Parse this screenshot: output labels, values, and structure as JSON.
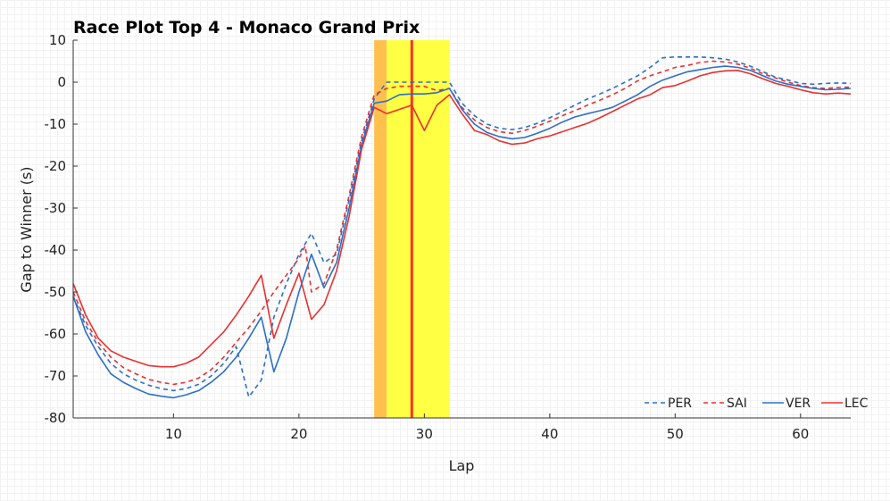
{
  "chart_data": {
    "type": "line",
    "title": "Race Plot Top 4 - Monaco Grand Prix",
    "xlabel": "Lap",
    "ylabel": "Gap to Winner (s)",
    "xlim": [
      2,
      64
    ],
    "ylim": [
      -80,
      10
    ],
    "xticks": [
      10,
      20,
      30,
      40,
      50,
      60
    ],
    "yticks": [
      10,
      0,
      -10,
      -20,
      -30,
      -40,
      -50,
      -60,
      -70,
      -80
    ],
    "grid": false,
    "legend_position": "bottom-right",
    "shaded_regions": [
      {
        "x_start": 26,
        "x_end": 27,
        "color": "#ffc04d"
      },
      {
        "x_start": 27,
        "x_end": 32,
        "color": "#ffff44"
      }
    ],
    "vertical_lines": [
      {
        "x": 29,
        "color": "#ff3322"
      }
    ],
    "series": [
      {
        "name": "PER",
        "color": "#2b6fc7",
        "dash": "dashed",
        "points": [
          [
            2,
            -51
          ],
          [
            3,
            -58
          ],
          [
            4,
            -63
          ],
          [
            5,
            -67
          ],
          [
            6,
            -69.5
          ],
          [
            7,
            -71
          ],
          [
            8,
            -72.2
          ],
          [
            9,
            -73
          ],
          [
            10,
            -73.5
          ],
          [
            11,
            -73
          ],
          [
            12,
            -72
          ],
          [
            13,
            -70
          ],
          [
            14,
            -67
          ],
          [
            15,
            -63
          ],
          [
            16,
            -75
          ],
          [
            17,
            -71
          ],
          [
            18,
            -56
          ],
          [
            19,
            -48
          ],
          [
            20,
            -41
          ],
          [
            21,
            -36
          ],
          [
            22,
            -43
          ],
          [
            23,
            -41
          ],
          [
            24,
            -28
          ],
          [
            25,
            -14
          ],
          [
            26,
            -4
          ],
          [
            27,
            0
          ],
          [
            28,
            0
          ],
          [
            29,
            0
          ],
          [
            30,
            0
          ],
          [
            31,
            0
          ],
          [
            32,
            0
          ],
          [
            33,
            -5
          ],
          [
            34,
            -8
          ],
          [
            35,
            -10
          ],
          [
            36,
            -11
          ],
          [
            37,
            -11.3
          ],
          [
            38,
            -10.8
          ],
          [
            39,
            -9.8
          ],
          [
            40,
            -8.5
          ],
          [
            41,
            -7
          ],
          [
            42,
            -5.5
          ],
          [
            43,
            -4
          ],
          [
            44,
            -2.8
          ],
          [
            45,
            -1.5
          ],
          [
            46,
            0
          ],
          [
            47,
            1.5
          ],
          [
            48,
            3.5
          ],
          [
            49,
            5.8
          ],
          [
            50,
            6
          ],
          [
            51,
            6
          ],
          [
            52,
            6
          ],
          [
            53,
            5.8
          ],
          [
            54,
            5.5
          ],
          [
            55,
            4.8
          ],
          [
            56,
            3.8
          ],
          [
            57,
            2.5
          ],
          [
            58,
            1.2
          ],
          [
            59,
            0.5
          ],
          [
            60,
            -0.3
          ],
          [
            61,
            -0.5
          ],
          [
            62,
            -0.3
          ],
          [
            63,
            -0.2
          ],
          [
            64,
            -0.3
          ]
        ]
      },
      {
        "name": "SAI",
        "color": "#e83030",
        "dash": "dashed",
        "points": [
          [
            2,
            -50
          ],
          [
            3,
            -57
          ],
          [
            4,
            -62
          ],
          [
            5,
            -65.5
          ],
          [
            6,
            -68
          ],
          [
            7,
            -69.5
          ],
          [
            8,
            -70.8
          ],
          [
            9,
            -71.5
          ],
          [
            10,
            -72
          ],
          [
            11,
            -71.5
          ],
          [
            12,
            -70.5
          ],
          [
            13,
            -68.5
          ],
          [
            14,
            -65.5
          ],
          [
            15,
            -62
          ],
          [
            16,
            -58.5
          ],
          [
            17,
            -54.5
          ],
          [
            18,
            -50
          ],
          [
            19,
            -46
          ],
          [
            20,
            -42
          ],
          [
            20.5,
            -39
          ],
          [
            21,
            -50
          ],
          [
            22,
            -48
          ],
          [
            23,
            -40
          ],
          [
            24,
            -27
          ],
          [
            25,
            -13
          ],
          [
            26,
            -3
          ],
          [
            27,
            -1.5
          ],
          [
            28,
            -1
          ],
          [
            29,
            -1
          ],
          [
            30,
            -1
          ],
          [
            31,
            -2
          ],
          [
            32,
            -1.5
          ],
          [
            33,
            -6
          ],
          [
            34,
            -9
          ],
          [
            35,
            -10.8
          ],
          [
            36,
            -11.8
          ],
          [
            37,
            -12.2
          ],
          [
            38,
            -11.5
          ],
          [
            39,
            -10.5
          ],
          [
            40,
            -9.3
          ],
          [
            41,
            -8
          ],
          [
            42,
            -6.8
          ],
          [
            43,
            -5.5
          ],
          [
            44,
            -4.3
          ],
          [
            45,
            -3
          ],
          [
            46,
            -1.5
          ],
          [
            47,
            0.3
          ],
          [
            48,
            1.5
          ],
          [
            49,
            2.5
          ],
          [
            50,
            3.5
          ],
          [
            51,
            4
          ],
          [
            52,
            4.7
          ],
          [
            53,
            5
          ],
          [
            54,
            4.8
          ],
          [
            55,
            4.3
          ],
          [
            56,
            3.3
          ],
          [
            57,
            2
          ],
          [
            58,
            1
          ],
          [
            59,
            0
          ],
          [
            60,
            -0.8
          ],
          [
            61,
            -1.3
          ],
          [
            62,
            -1.5
          ],
          [
            63,
            -1.3
          ],
          [
            64,
            -1.2
          ]
        ]
      },
      {
        "name": "VER",
        "color": "#2b6fc7",
        "dash": "solid",
        "points": [
          [
            2,
            -51
          ],
          [
            3,
            -59.5
          ],
          [
            4,
            -65
          ],
          [
            5,
            -69.5
          ],
          [
            6,
            -71.5
          ],
          [
            7,
            -73
          ],
          [
            8,
            -74.3
          ],
          [
            9,
            -74.8
          ],
          [
            10,
            -75.2
          ],
          [
            11,
            -74.5
          ],
          [
            12,
            -73.5
          ],
          [
            13,
            -71.5
          ],
          [
            14,
            -69
          ],
          [
            15,
            -65.5
          ],
          [
            16,
            -61
          ],
          [
            17,
            -56
          ],
          [
            18,
            -69
          ],
          [
            19,
            -61
          ],
          [
            20,
            -50
          ],
          [
            21,
            -41
          ],
          [
            22,
            -49
          ],
          [
            23,
            -43
          ],
          [
            24,
            -30
          ],
          [
            25,
            -15
          ],
          [
            26,
            -5
          ],
          [
            27,
            -4.5
          ],
          [
            28,
            -3
          ],
          [
            29,
            -2.8
          ],
          [
            30,
            -2.8
          ],
          [
            31,
            -2.5
          ],
          [
            32,
            -1.5
          ],
          [
            33,
            -6.5
          ],
          [
            34,
            -10
          ],
          [
            35,
            -12
          ],
          [
            36,
            -13
          ],
          [
            37,
            -13.5
          ],
          [
            38,
            -13.2
          ],
          [
            39,
            -12.2
          ],
          [
            40,
            -11
          ],
          [
            41,
            -9.5
          ],
          [
            42,
            -8.3
          ],
          [
            43,
            -7.5
          ],
          [
            44,
            -6.8
          ],
          [
            45,
            -6
          ],
          [
            46,
            -4.5
          ],
          [
            47,
            -3
          ],
          [
            48,
            -1
          ],
          [
            49,
            0.5
          ],
          [
            50,
            1.5
          ],
          [
            51,
            2.5
          ],
          [
            52,
            3
          ],
          [
            53,
            3.5
          ],
          [
            54,
            3.8
          ],
          [
            55,
            3.5
          ],
          [
            56,
            2.8
          ],
          [
            57,
            1.5
          ],
          [
            58,
            0.3
          ],
          [
            59,
            -0.5
          ],
          [
            60,
            -1
          ],
          [
            61,
            -1.5
          ],
          [
            62,
            -1.8
          ],
          [
            63,
            -1.7
          ],
          [
            64,
            -1.5
          ]
        ]
      },
      {
        "name": "LEC",
        "color": "#e83030",
        "dash": "solid",
        "points": [
          [
            2,
            -48
          ],
          [
            3,
            -55.5
          ],
          [
            4,
            -61
          ],
          [
            5,
            -64
          ],
          [
            6,
            -65.5
          ],
          [
            7,
            -66.5
          ],
          [
            8,
            -67.5
          ],
          [
            9,
            -67.8
          ],
          [
            10,
            -67.8
          ],
          [
            11,
            -67
          ],
          [
            12,
            -65.5
          ],
          [
            13,
            -62.5
          ],
          [
            14,
            -59.5
          ],
          [
            15,
            -55.5
          ],
          [
            16,
            -51
          ],
          [
            17,
            -46
          ],
          [
            18,
            -61
          ],
          [
            19,
            -53
          ],
          [
            20,
            -45.5
          ],
          [
            21,
            -56.5
          ],
          [
            22,
            -53
          ],
          [
            23,
            -45
          ],
          [
            24,
            -32
          ],
          [
            25,
            -16
          ],
          [
            26,
            -6
          ],
          [
            27,
            -7.5
          ],
          [
            28,
            -6.5
          ],
          [
            29,
            -5.5
          ],
          [
            30,
            -11.5
          ],
          [
            31,
            -5.5
          ],
          [
            32,
            -3
          ],
          [
            33,
            -7.5
          ],
          [
            34,
            -11.5
          ],
          [
            35,
            -12.5
          ],
          [
            36,
            -14
          ],
          [
            37,
            -14.8
          ],
          [
            38,
            -14.5
          ],
          [
            39,
            -13.5
          ],
          [
            40,
            -12.8
          ],
          [
            41,
            -11.8
          ],
          [
            42,
            -10.8
          ],
          [
            43,
            -9.8
          ],
          [
            44,
            -8.5
          ],
          [
            45,
            -7
          ],
          [
            46,
            -5.5
          ],
          [
            47,
            -4
          ],
          [
            48,
            -3
          ],
          [
            49,
            -1.3
          ],
          [
            50,
            -0.8
          ],
          [
            51,
            0.3
          ],
          [
            52,
            1.5
          ],
          [
            53,
            2.3
          ],
          [
            54,
            2.7
          ],
          [
            55,
            2.8
          ],
          [
            56,
            2
          ],
          [
            57,
            0.8
          ],
          [
            58,
            -0.3
          ],
          [
            59,
            -1
          ],
          [
            60,
            -1.8
          ],
          [
            61,
            -2.5
          ],
          [
            62,
            -2.8
          ],
          [
            63,
            -2.6
          ],
          [
            64,
            -2.8
          ]
        ]
      }
    ]
  }
}
